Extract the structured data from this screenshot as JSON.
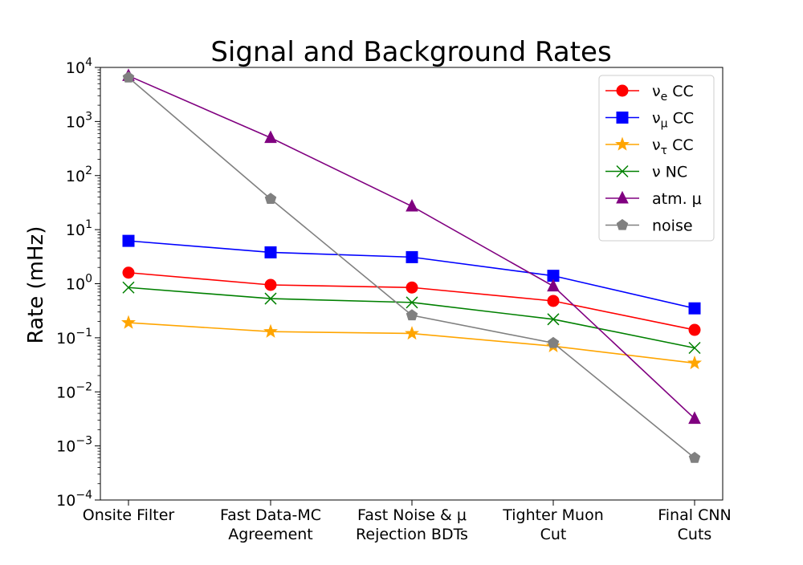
{
  "chart_data": {
    "type": "line",
    "title": "Signal and Background Rates",
    "xlabel": "",
    "ylabel": "Rate (mHz)",
    "yscale": "log",
    "ylim": [
      0.0001,
      10000
    ],
    "y_ticks": [
      {
        "value": 0.0001,
        "base": "10",
        "exp": "−4"
      },
      {
        "value": 0.001,
        "base": "10",
        "exp": "−3"
      },
      {
        "value": 0.01,
        "base": "10",
        "exp": "−2"
      },
      {
        "value": 0.1,
        "base": "10",
        "exp": "−1"
      },
      {
        "value": 1,
        "base": "10",
        "exp": "0"
      },
      {
        "value": 10,
        "base": "10",
        "exp": "1"
      },
      {
        "value": 100,
        "base": "10",
        "exp": "2"
      },
      {
        "value": 1000,
        "base": "10",
        "exp": "3"
      },
      {
        "value": 10000,
        "base": "10",
        "exp": "4"
      }
    ],
    "categories": [
      [
        "Onsite Filter"
      ],
      [
        "Fast Data-MC",
        "Agreement"
      ],
      [
        "Fast Noise & μ",
        "Rejection BDTs"
      ],
      [
        "Tighter Muon",
        "Cut"
      ],
      [
        "Final CNN",
        "Cuts"
      ]
    ],
    "legend_position": "top-right",
    "grid": false,
    "series": [
      {
        "name": "νe CC",
        "label_main": "ν",
        "label_sub": "e",
        "label_suffix": " CC",
        "color": "#ff0000",
        "marker": "circle",
        "values": [
          1.6,
          0.95,
          0.85,
          0.48,
          0.14
        ]
      },
      {
        "name": "νμ CC",
        "label_main": "ν",
        "label_sub": "μ",
        "label_suffix": " CC",
        "color": "#0000ff",
        "marker": "square",
        "values": [
          6.2,
          3.8,
          3.1,
          1.4,
          0.35
        ]
      },
      {
        "name": "ντ CC",
        "label_main": "ν",
        "label_sub": "τ",
        "label_suffix": " CC",
        "color": "#ffa500",
        "marker": "star",
        "values": [
          0.19,
          0.13,
          0.12,
          0.07,
          0.034
        ]
      },
      {
        "name": "ν NC",
        "label_main": "ν",
        "label_sub": "",
        "label_suffix": " NC",
        "color": "#008000",
        "marker": "x",
        "values": [
          0.85,
          0.53,
          0.45,
          0.22,
          0.065
        ]
      },
      {
        "name": "atm. μ",
        "label_main": "atm. μ",
        "label_sub": "",
        "label_suffix": "",
        "color": "#800080",
        "marker": "triangle",
        "values": [
          7000,
          500,
          27,
          0.9,
          0.0032
        ]
      },
      {
        "name": "noise",
        "label_main": "noise",
        "label_sub": "",
        "label_suffix": "",
        "color": "#808080",
        "marker": "pentagon",
        "values": [
          6500,
          37,
          0.26,
          0.08,
          0.0006
        ]
      }
    ]
  }
}
